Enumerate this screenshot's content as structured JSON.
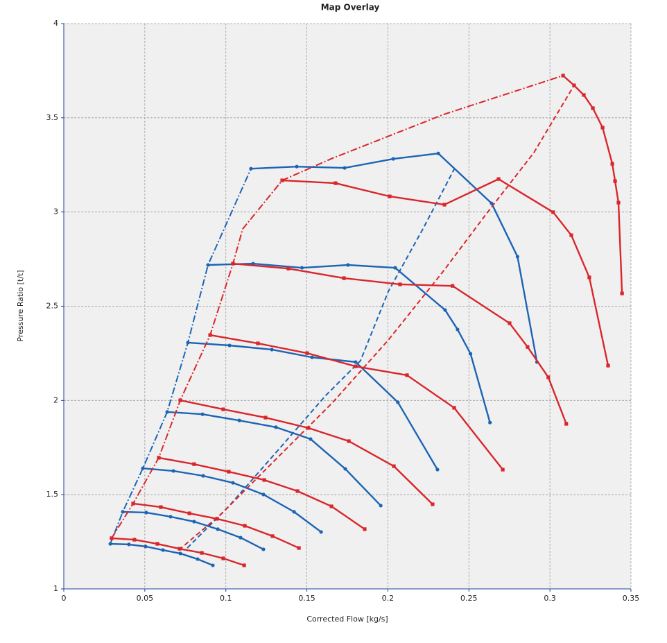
{
  "chart_data": {
    "type": "line",
    "title": "Map Overlay",
    "x_label": "Corrected Flow [kg/s]",
    "y_label": "Pressure Ratio [t/t]",
    "xlim": [
      0,
      0.35
    ],
    "ylim": [
      1,
      4
    ],
    "xticks": [
      0,
      0.05,
      0.1,
      0.15,
      0.2,
      0.25,
      0.3,
      0.35
    ],
    "yticks": [
      1,
      1.5,
      2,
      2.5,
      3,
      3.5,
      4
    ],
    "grid": true,
    "series": [
      {
        "color": "#1c64b4",
        "style": "solid",
        "marker": "circle",
        "x": [
          0.1155,
          0.1438,
          0.1733,
          0.2033,
          0.2311,
          0.264,
          0.28,
          0.292
        ],
        "values": [
          3.23,
          3.241,
          3.234,
          3.282,
          3.311,
          3.046,
          2.763,
          2.204
        ]
      },
      {
        "color": "#1c64b4",
        "style": "solid",
        "marker": "circle",
        "x": [
          0.089,
          0.1168,
          0.147,
          0.1754,
          0.2045,
          0.2353,
          0.243,
          0.251,
          0.263
        ],
        "values": [
          2.719,
          2.726,
          2.704,
          2.719,
          2.704,
          2.48,
          2.377,
          2.248,
          1.883
        ]
      },
      {
        "color": "#1c64b4",
        "style": "solid",
        "marker": "circle",
        "x": [
          0.0766,
          0.1023,
          0.1284,
          0.1532,
          0.1801,
          0.2062,
          0.2306
        ],
        "values": [
          2.307,
          2.292,
          2.27,
          2.229,
          2.204,
          1.99,
          1.633
        ]
      },
      {
        "color": "#1c64b4",
        "style": "solid",
        "marker": "circle",
        "x": [
          0.0638,
          0.0856,
          0.1083,
          0.1309,
          0.1523,
          0.1737,
          0.1956
        ],
        "values": [
          1.939,
          1.927,
          1.894,
          1.858,
          1.795,
          1.637,
          1.442
        ]
      },
      {
        "color": "#1c64b4",
        "style": "solid",
        "marker": "circle",
        "x": [
          0.0488,
          0.0676,
          0.086,
          0.1044,
          0.1232,
          0.1421,
          0.1588
        ],
        "values": [
          1.64,
          1.626,
          1.6,
          1.563,
          1.501,
          1.409,
          1.302
        ]
      },
      {
        "color": "#1c64b4",
        "style": "solid",
        "marker": "circle",
        "x": [
          0.0364,
          0.0509,
          0.0659,
          0.0804,
          0.095,
          0.1091,
          0.1232
        ],
        "values": [
          1.409,
          1.405,
          1.383,
          1.357,
          1.317,
          1.272,
          1.21
        ]
      },
      {
        "color": "#1c64b4",
        "style": "solid",
        "marker": "circle",
        "x": [
          0.0287,
          0.0402,
          0.0505,
          0.0612,
          0.0719,
          0.0826,
          0.092
        ],
        "values": [
          1.239,
          1.236,
          1.225,
          1.206,
          1.188,
          1.158,
          1.125
        ]
      },
      {
        "color": "#1c64b4",
        "style": "dashdot",
        "marker": "none",
        "x": [
          0.0287,
          0.0364,
          0.0488,
          0.0638,
          0.0766,
          0.089,
          0.1155
        ],
        "values": [
          1.239,
          1.409,
          1.64,
          1.939,
          2.307,
          2.719,
          3.23
        ]
      },
      {
        "color": "#1c64b4",
        "style": "dashed",
        "marker": "none",
        "x": [
          0.0762,
          0.1018,
          0.1318,
          0.1617,
          0.1831,
          0.2003,
          0.2216,
          0.2409
        ],
        "values": [
          1.217,
          1.438,
          1.732,
          2.027,
          2.211,
          2.579,
          2.91,
          3.227
        ]
      },
      {
        "color": "#d9262b",
        "style": "solid",
        "marker": "square",
        "x": [
          0.1348,
          0.1677,
          0.2011,
          0.2349,
          0.2683,
          0.302,
          0.3132,
          0.3243,
          0.3359
        ],
        "values": [
          3.168,
          3.153,
          3.083,
          3.039,
          3.175,
          2.999,
          2.877,
          2.653,
          2.185
        ]
      },
      {
        "color": "#d9262b",
        "style": "solid",
        "marker": "square",
        "x": [
          0.3081,
          0.3149,
          0.3209,
          0.3265,
          0.3325,
          0.3385,
          0.3402,
          0.3423,
          0.3445
        ],
        "values": [
          3.724,
          3.672,
          3.621,
          3.551,
          3.448,
          3.256,
          3.164,
          3.05,
          2.568
        ]
      },
      {
        "color": "#d9262b",
        "style": "solid",
        "marker": "square",
        "x": [
          0.1044,
          0.1386,
          0.1729,
          0.2075,
          0.2399,
          0.2751,
          0.2862,
          0.299,
          0.3101
        ],
        "values": [
          2.726,
          2.7,
          2.649,
          2.616,
          2.608,
          2.41,
          2.284,
          2.123,
          1.876
        ]
      },
      {
        "color": "#d9262b",
        "style": "solid",
        "marker": "square",
        "x": [
          0.0903,
          0.1198,
          0.1502,
          0.1801,
          0.2118,
          0.2409,
          0.2709
        ],
        "values": [
          2.347,
          2.303,
          2.251,
          2.181,
          2.134,
          1.961,
          1.633
        ]
      },
      {
        "color": "#d9262b",
        "style": "solid",
        "marker": "square",
        "x": [
          0.0719,
          0.0984,
          0.1245,
          0.151,
          0.1759,
          0.2037,
          0.2276
        ],
        "values": [
          2.001,
          1.953,
          1.909,
          1.854,
          1.784,
          1.651,
          1.449
        ]
      },
      {
        "color": "#d9262b",
        "style": "solid",
        "marker": "square",
        "x": [
          0.0586,
          0.0804,
          0.1018,
          0.1237,
          0.1442,
          0.1652,
          0.1857
        ],
        "values": [
          1.696,
          1.662,
          1.622,
          1.578,
          1.519,
          1.438,
          1.317
        ]
      },
      {
        "color": "#d9262b",
        "style": "solid",
        "marker": "square",
        "x": [
          0.0428,
          0.0599,
          0.0775,
          0.0946,
          0.1117,
          0.1288,
          0.1451
        ],
        "values": [
          1.453,
          1.434,
          1.401,
          1.372,
          1.335,
          1.28,
          1.217
        ]
      },
      {
        "color": "#d9262b",
        "style": "solid",
        "marker": "square",
        "x": [
          0.0295,
          0.0436,
          0.0578,
          0.0715,
          0.0852,
          0.0984,
          0.1113
        ],
        "values": [
          1.269,
          1.261,
          1.239,
          1.213,
          1.191,
          1.162,
          1.125
        ]
      },
      {
        "color": "#d9262b",
        "style": "dashdot",
        "marker": "none",
        "x": [
          0.0295,
          0.0428,
          0.0586,
          0.0719,
          0.0903,
          0.1044,
          0.1104,
          0.1348,
          0.166,
          0.2345,
          0.3081
        ],
        "values": [
          1.269,
          1.453,
          1.696,
          2.001,
          2.347,
          2.726,
          2.91,
          3.168,
          3.286,
          3.518,
          3.724
        ]
      },
      {
        "color": "#d9262b",
        "style": "dashed",
        "marker": "none",
        "x": [
          0.071,
          0.0976,
          0.1318,
          0.166,
          0.2003,
          0.2345,
          0.2602,
          0.2901,
          0.3149
        ],
        "values": [
          1.206,
          1.401,
          1.696,
          1.99,
          2.321,
          2.689,
          2.984,
          3.315,
          3.672
        ]
      }
    ]
  }
}
